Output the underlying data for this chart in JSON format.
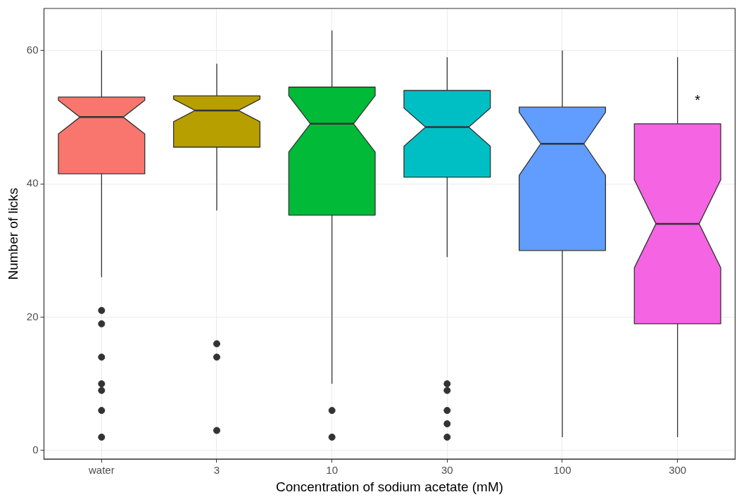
{
  "chart_data": {
    "type": "box",
    "xlabel": "Concentration of sodium acetate (mM)",
    "ylabel": "Number of licks",
    "categories": [
      "water",
      "3",
      "10",
      "30",
      "100",
      "300"
    ],
    "colors": [
      "#f8766d",
      "#b79f00",
      "#00ba38",
      "#00bfc4",
      "#619cff",
      "#f564e3"
    ],
    "boxes": [
      {
        "low": 26,
        "q1": 41.5,
        "median": 50,
        "q3": 53,
        "high": 60,
        "outliers": [
          21,
          19,
          14,
          10,
          9,
          6,
          2
        ]
      },
      {
        "low": 36,
        "q1": 45.5,
        "median": 51,
        "q3": 53.2,
        "high": 58,
        "outliers": [
          16,
          14,
          3
        ]
      },
      {
        "low": 10,
        "q1": 35.3,
        "median": 49,
        "q3": 54.5,
        "high": 63,
        "outliers": [
          6,
          2
        ]
      },
      {
        "low": 29,
        "q1": 41,
        "median": 48.5,
        "q3": 54,
        "high": 59,
        "outliers": [
          10,
          9,
          6,
          4,
          2
        ]
      },
      {
        "low": 2,
        "q1": 30,
        "median": 46,
        "q3": 51.5,
        "high": 60
      },
      {
        "low": 2,
        "q1": 19,
        "median": 34,
        "q3": 49,
        "high": 59
      }
    ],
    "ylim": [
      -1.3,
      66.3
    ],
    "yticks": [
      0,
      20,
      40,
      60
    ],
    "grid": true,
    "legend": false,
    "annotations": [
      {
        "text": "*",
        "x": "300",
        "y": 53
      }
    ]
  }
}
